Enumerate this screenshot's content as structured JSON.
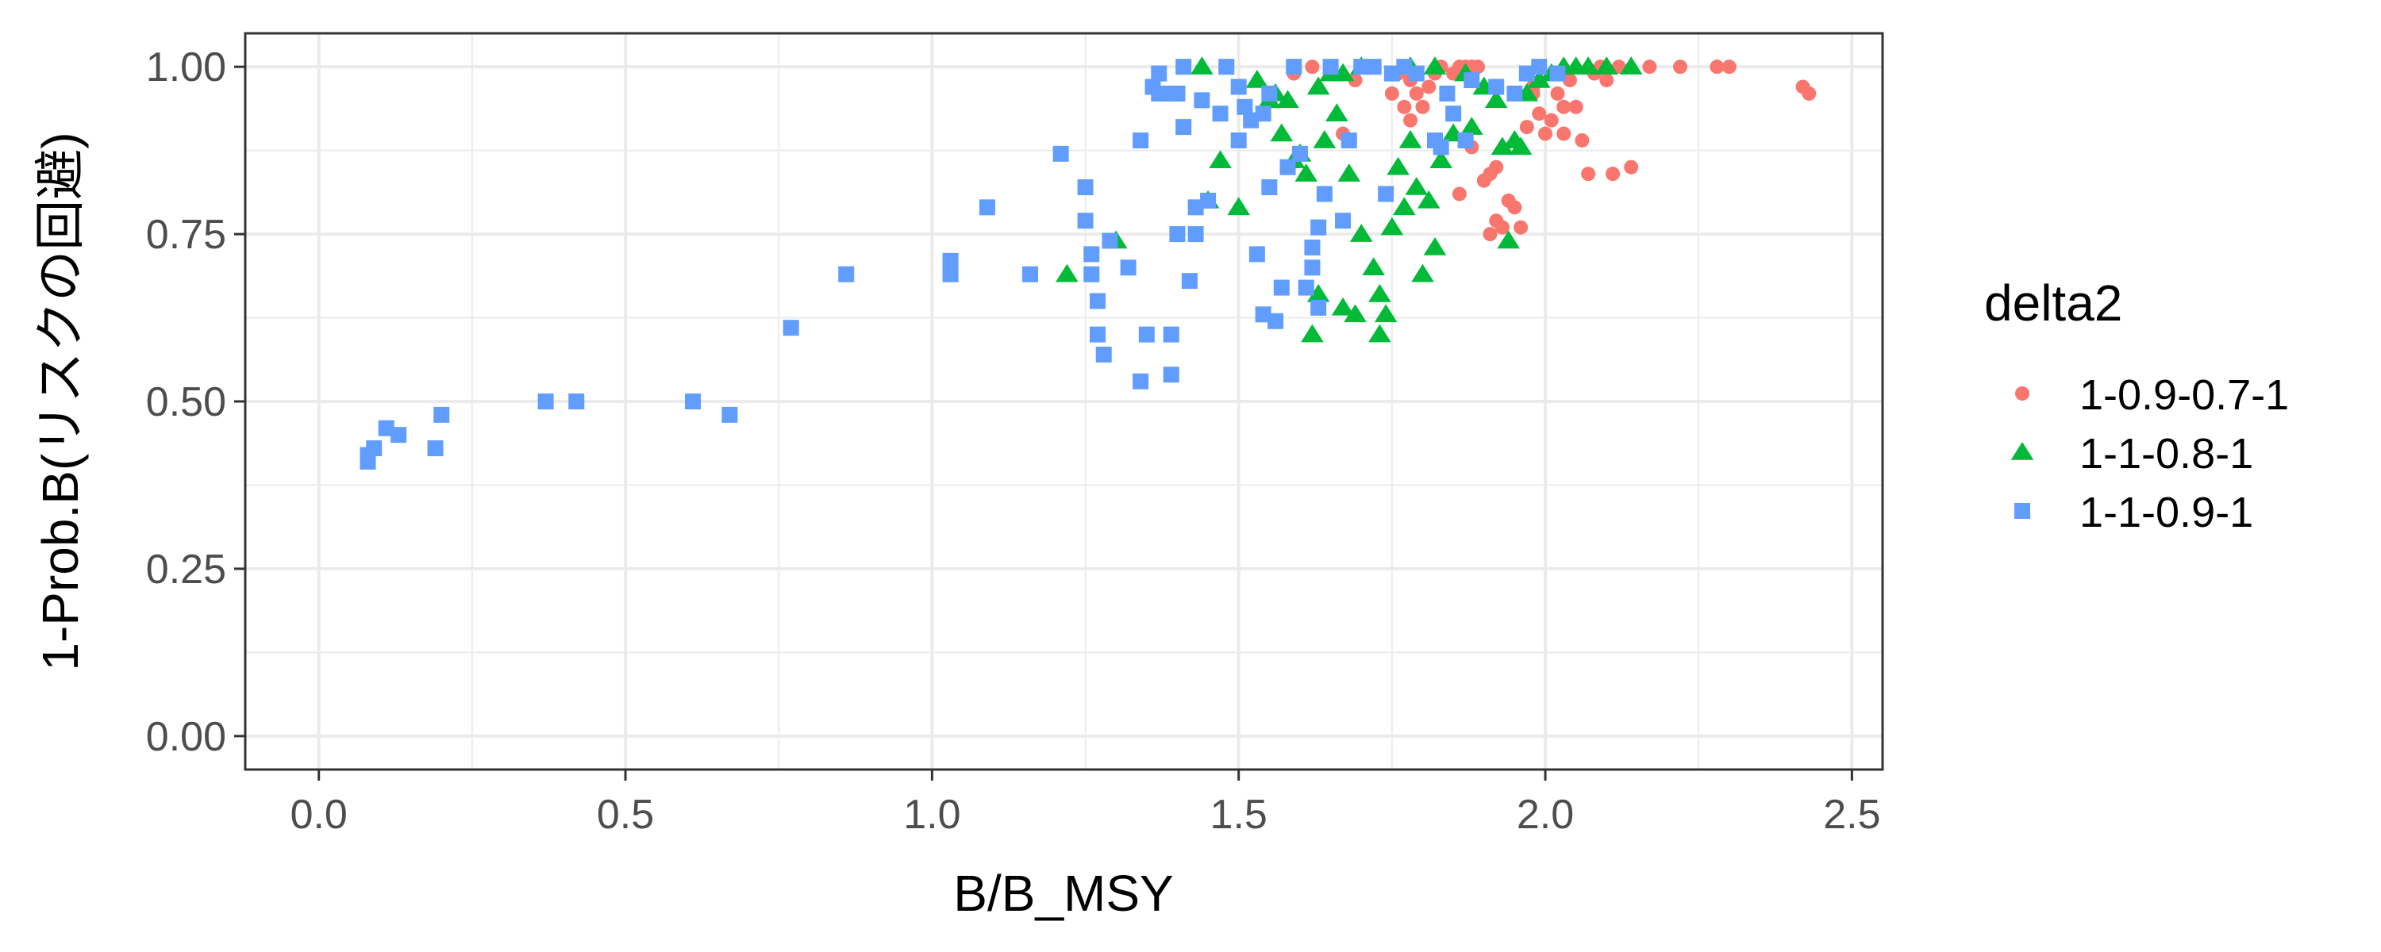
{
  "chart_data": {
    "type": "scatter",
    "title": "",
    "xlabel": "B/B_MSY",
    "ylabel": "1-Prob.B(リスクの回避)",
    "xlim": [
      -0.12,
      2.55
    ],
    "ylim": [
      -0.05,
      1.05
    ],
    "x_ticks": [
      "0.0",
      "0.5",
      "1.0",
      "1.5",
      "2.0",
      "2.5"
    ],
    "y_ticks": [
      "0.00",
      "0.25",
      "0.50",
      "0.75",
      "1.00"
    ],
    "grid": true,
    "legend_position": "right",
    "legend_title": "delta2",
    "series": [
      {
        "name": "1-0.9-0.7-1",
        "color": "#F8766D",
        "marker": "circle",
        "points": [
          [
            1.59,
            0.99
          ],
          [
            1.62,
            1.0
          ],
          [
            1.65,
            0.99
          ],
          [
            1.67,
            0.9
          ],
          [
            1.69,
            0.98
          ],
          [
            1.72,
            1.0
          ],
          [
            1.75,
            0.96
          ],
          [
            1.76,
            0.99
          ],
          [
            1.77,
            0.94
          ],
          [
            1.78,
            0.98
          ],
          [
            1.79,
            0.96
          ],
          [
            1.8,
            0.94
          ],
          [
            1.81,
            0.97
          ],
          [
            1.82,
            0.99
          ],
          [
            1.83,
            1.0
          ],
          [
            1.85,
            0.99
          ],
          [
            1.86,
            1.0
          ],
          [
            1.87,
            1.0
          ],
          [
            1.88,
            1.0
          ],
          [
            1.89,
            1.0
          ],
          [
            1.9,
            0.83
          ],
          [
            1.91,
            0.84
          ],
          [
            1.92,
            0.85
          ],
          [
            1.93,
            0.76
          ],
          [
            1.94,
            0.8
          ],
          [
            1.95,
            0.79
          ],
          [
            1.96,
            0.76
          ],
          [
            1.97,
            0.91
          ],
          [
            1.98,
            0.96
          ],
          [
            1.99,
            0.93
          ],
          [
            2.0,
            0.9
          ],
          [
            2.01,
            0.92
          ],
          [
            2.02,
            0.96
          ],
          [
            2.03,
            0.9
          ],
          [
            2.04,
            0.98
          ],
          [
            2.05,
            0.94
          ],
          [
            2.06,
            0.89
          ],
          [
            2.07,
            0.84
          ],
          [
            2.08,
            0.99
          ],
          [
            2.09,
            1.0
          ],
          [
            2.1,
            0.98
          ],
          [
            2.11,
            0.84
          ],
          [
            2.12,
            1.0
          ],
          [
            2.14,
            0.85
          ],
          [
            2.17,
            1.0
          ],
          [
            2.22,
            1.0
          ],
          [
            2.28,
            1.0
          ],
          [
            2.3,
            1.0
          ],
          [
            2.42,
            0.97
          ],
          [
            2.43,
            0.96
          ],
          [
            1.86,
            0.81
          ],
          [
            1.91,
            0.75
          ],
          [
            1.93,
            0.76
          ],
          [
            1.92,
            0.77
          ],
          [
            1.88,
            0.88
          ],
          [
            2.03,
            0.94
          ],
          [
            1.98,
            0.97
          ],
          [
            1.78,
            0.92
          ]
        ]
      },
      {
        "name": "1-1-0.8-1",
        "color": "#00BA38",
        "marker": "triangle",
        "points": [
          [
            1.22,
            0.69
          ],
          [
            1.3,
            0.74
          ],
          [
            1.44,
            1.0
          ],
          [
            1.45,
            0.8
          ],
          [
            1.47,
            0.86
          ],
          [
            1.5,
            0.79
          ],
          [
            1.53,
            0.98
          ],
          [
            1.55,
            0.95
          ],
          [
            1.57,
            0.9
          ],
          [
            1.58,
            0.95
          ],
          [
            1.6,
            0.87
          ],
          [
            1.61,
            0.84
          ],
          [
            1.62,
            0.6
          ],
          [
            1.63,
            0.97
          ],
          [
            1.64,
            0.89
          ],
          [
            1.65,
            0.99
          ],
          [
            1.66,
            0.93
          ],
          [
            1.67,
            0.64
          ],
          [
            1.68,
            0.84
          ],
          [
            1.69,
            0.63
          ],
          [
            1.7,
            0.75
          ],
          [
            1.72,
            0.7
          ],
          [
            1.73,
            0.6
          ],
          [
            1.74,
            0.63
          ],
          [
            1.75,
            0.76
          ],
          [
            1.76,
            0.85
          ],
          [
            1.77,
            0.79
          ],
          [
            1.78,
            0.89
          ],
          [
            1.79,
            0.82
          ],
          [
            1.8,
            0.69
          ],
          [
            1.81,
            0.8
          ],
          [
            1.82,
            0.73
          ],
          [
            1.83,
            0.86
          ],
          [
            1.85,
            0.9
          ],
          [
            1.87,
            0.99
          ],
          [
            1.88,
            0.91
          ],
          [
            1.9,
            0.97
          ],
          [
            1.92,
            0.95
          ],
          [
            1.93,
            0.88
          ],
          [
            1.94,
            0.74
          ],
          [
            1.95,
            0.89
          ],
          [
            1.96,
            0.88
          ],
          [
            1.97,
            0.96
          ],
          [
            1.99,
            0.98
          ],
          [
            2.01,
            0.99
          ],
          [
            2.03,
            1.0
          ],
          [
            2.05,
            1.0
          ],
          [
            2.07,
            1.0
          ],
          [
            2.1,
            1.0
          ],
          [
            2.14,
            1.0
          ],
          [
            1.56,
            0.96
          ],
          [
            1.59,
            0.86
          ],
          [
            1.63,
            0.66
          ],
          [
            1.73,
            0.66
          ],
          [
            1.67,
            0.99
          ],
          [
            1.7,
            1.0
          ],
          [
            1.78,
            1.0
          ],
          [
            1.82,
            1.0
          ]
        ]
      },
      {
        "name": "1-1-0.9-1",
        "color": "#619CFF",
        "marker": "square",
        "points": [
          [
            0.08,
            0.41
          ],
          [
            0.08,
            0.42
          ],
          [
            0.09,
            0.43
          ],
          [
            0.11,
            0.46
          ],
          [
            0.13,
            0.45
          ],
          [
            0.19,
            0.43
          ],
          [
            0.2,
            0.48
          ],
          [
            0.37,
            0.5
          ],
          [
            0.42,
            0.5
          ],
          [
            0.61,
            0.5
          ],
          [
            0.67,
            0.48
          ],
          [
            0.77,
            0.61
          ],
          [
            0.86,
            0.69
          ],
          [
            1.03,
            0.69
          ],
          [
            1.03,
            0.7
          ],
          [
            1.03,
            0.71
          ],
          [
            1.09,
            0.79
          ],
          [
            1.16,
            0.69
          ],
          [
            1.21,
            0.87
          ],
          [
            1.25,
            0.77
          ],
          [
            1.25,
            0.82
          ],
          [
            1.26,
            0.72
          ],
          [
            1.26,
            0.69
          ],
          [
            1.27,
            0.65
          ],
          [
            1.27,
            0.6
          ],
          [
            1.28,
            0.57
          ],
          [
            1.29,
            0.74
          ],
          [
            1.32,
            0.7
          ],
          [
            1.34,
            0.53
          ],
          [
            1.34,
            0.89
          ],
          [
            1.35,
            0.6
          ],
          [
            1.36,
            0.97
          ],
          [
            1.37,
            0.99
          ],
          [
            1.39,
            0.96
          ],
          [
            1.39,
            0.54
          ],
          [
            1.39,
            0.6
          ],
          [
            1.4,
            0.75
          ],
          [
            1.41,
            0.91
          ],
          [
            1.42,
            0.68
          ],
          [
            1.43,
            0.79
          ],
          [
            1.44,
            0.95
          ],
          [
            1.45,
            0.8
          ],
          [
            1.47,
            0.93
          ],
          [
            1.48,
            1.0
          ],
          [
            1.5,
            0.89
          ],
          [
            1.51,
            0.94
          ],
          [
            1.52,
            0.92
          ],
          [
            1.53,
            0.72
          ],
          [
            1.54,
            0.63
          ],
          [
            1.55,
            0.82
          ],
          [
            1.56,
            0.62
          ],
          [
            1.57,
            0.67
          ],
          [
            1.58,
            0.85
          ],
          [
            1.59,
            1.0
          ],
          [
            1.6,
            0.87
          ],
          [
            1.61,
            0.67
          ],
          [
            1.62,
            0.73
          ],
          [
            1.63,
            0.76
          ],
          [
            1.64,
            0.81
          ],
          [
            1.65,
            1.0
          ],
          [
            1.67,
            0.77
          ],
          [
            1.68,
            0.89
          ],
          [
            1.7,
            1.0
          ],
          [
            1.72,
            1.0
          ],
          [
            1.74,
            0.81
          ],
          [
            1.75,
            0.99
          ],
          [
            1.77,
            1.0
          ],
          [
            1.79,
            0.99
          ],
          [
            1.82,
            0.89
          ],
          [
            1.83,
            0.88
          ],
          [
            1.84,
            0.96
          ],
          [
            1.85,
            0.93
          ],
          [
            1.87,
            0.89
          ],
          [
            1.88,
            0.98
          ],
          [
            1.92,
            0.97
          ],
          [
            1.95,
            0.96
          ],
          [
            1.97,
            0.99
          ],
          [
            1.99,
            1.0
          ],
          [
            2.02,
            0.99
          ],
          [
            1.41,
            1.0
          ],
          [
            1.43,
            0.75
          ],
          [
            1.5,
            0.97
          ],
          [
            1.55,
            0.96
          ],
          [
            1.62,
            0.7
          ],
          [
            1.63,
            0.64
          ],
          [
            1.54,
            0.93
          ],
          [
            1.37,
            0.96
          ],
          [
            1.4,
            0.96
          ]
        ]
      }
    ]
  }
}
